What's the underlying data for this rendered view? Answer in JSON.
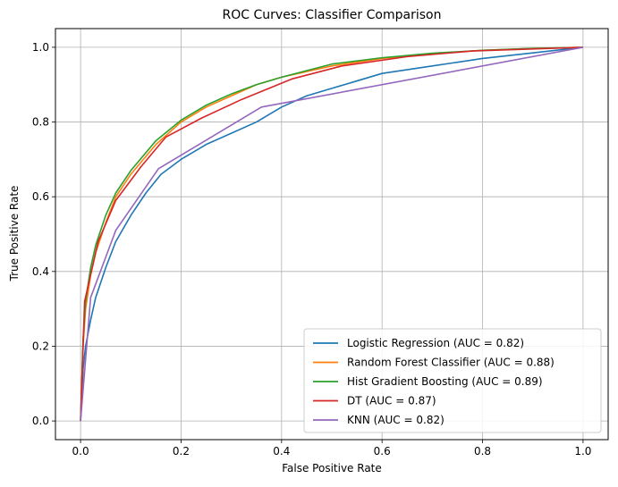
{
  "chart_data": {
    "type": "line",
    "title": "ROC Curves: Classifier Comparison",
    "xlabel": "False Positive Rate",
    "ylabel": "True Positive Rate",
    "xlim": [
      -0.05,
      1.05
    ],
    "ylim": [
      -0.05,
      1.05
    ],
    "xticks": [
      0.0,
      0.2,
      0.4,
      0.6,
      0.8,
      1.0
    ],
    "yticks": [
      0.0,
      0.2,
      0.4,
      0.6,
      0.8,
      1.0
    ],
    "xtick_labels": [
      "0.0",
      "0.2",
      "0.4",
      "0.6",
      "0.8",
      "1.0"
    ],
    "ytick_labels": [
      "0.0",
      "0.2",
      "0.4",
      "0.6",
      "0.8",
      "1.0"
    ],
    "grid": true,
    "legend_position": "bottom-right",
    "series": [
      {
        "name": "Logistic Regression (AUC = 0.82)",
        "color": "#1f77b4",
        "x": [
          0,
          0.005,
          0.01,
          0.02,
          0.03,
          0.05,
          0.07,
          0.1,
          0.13,
          0.16,
          0.2,
          0.25,
          0.3,
          0.35,
          0.4,
          0.45,
          0.5,
          0.55,
          0.6,
          0.7,
          0.8,
          0.9,
          1.0
        ],
        "y": [
          0,
          0.14,
          0.2,
          0.27,
          0.33,
          0.41,
          0.48,
          0.55,
          0.61,
          0.66,
          0.7,
          0.74,
          0.77,
          0.8,
          0.84,
          0.87,
          0.89,
          0.91,
          0.93,
          0.95,
          0.97,
          0.985,
          1.0
        ]
      },
      {
        "name": "Random Forest Classifier (AUC = 0.88)",
        "color": "#ff7f0e",
        "x": [
          0,
          0.005,
          0.01,
          0.02,
          0.03,
          0.05,
          0.07,
          0.1,
          0.15,
          0.2,
          0.25,
          0.3,
          0.35,
          0.4,
          0.5,
          0.6,
          0.7,
          0.8,
          0.9,
          1.0
        ],
        "y": [
          0,
          0.2,
          0.3,
          0.39,
          0.45,
          0.53,
          0.6,
          0.66,
          0.74,
          0.8,
          0.84,
          0.87,
          0.9,
          0.92,
          0.95,
          0.97,
          0.983,
          0.992,
          0.997,
          1.0
        ]
      },
      {
        "name": "Hist Gradient Boosting (AUC = 0.89)",
        "color": "#2ca02c",
        "x": [
          0,
          0.005,
          0.01,
          0.02,
          0.03,
          0.05,
          0.07,
          0.1,
          0.15,
          0.2,
          0.25,
          0.3,
          0.35,
          0.4,
          0.5,
          0.6,
          0.7,
          0.8,
          0.9,
          1.0
        ],
        "y": [
          0,
          0.22,
          0.32,
          0.41,
          0.47,
          0.55,
          0.61,
          0.67,
          0.75,
          0.805,
          0.845,
          0.875,
          0.9,
          0.92,
          0.955,
          0.972,
          0.984,
          0.992,
          0.997,
          1.0
        ]
      },
      {
        "name": "DT (AUC = 0.87)",
        "color": "#d62728",
        "x": [
          0,
          0.008,
          0.035,
          0.07,
          0.12,
          0.17,
          0.24,
          0.32,
          0.42,
          0.52,
          0.65,
          0.78,
          1.0
        ],
        "y": [
          0,
          0.32,
          0.48,
          0.59,
          0.68,
          0.76,
          0.81,
          0.86,
          0.915,
          0.95,
          0.975,
          0.99,
          1.0
        ]
      },
      {
        "name": "KNN (AUC = 0.82)",
        "color": "#9467bd",
        "x": [
          0,
          0.02,
          0.07,
          0.155,
          0.36,
          1.0
        ],
        "y": [
          0,
          0.33,
          0.51,
          0.675,
          0.84,
          1.0
        ]
      }
    ]
  }
}
